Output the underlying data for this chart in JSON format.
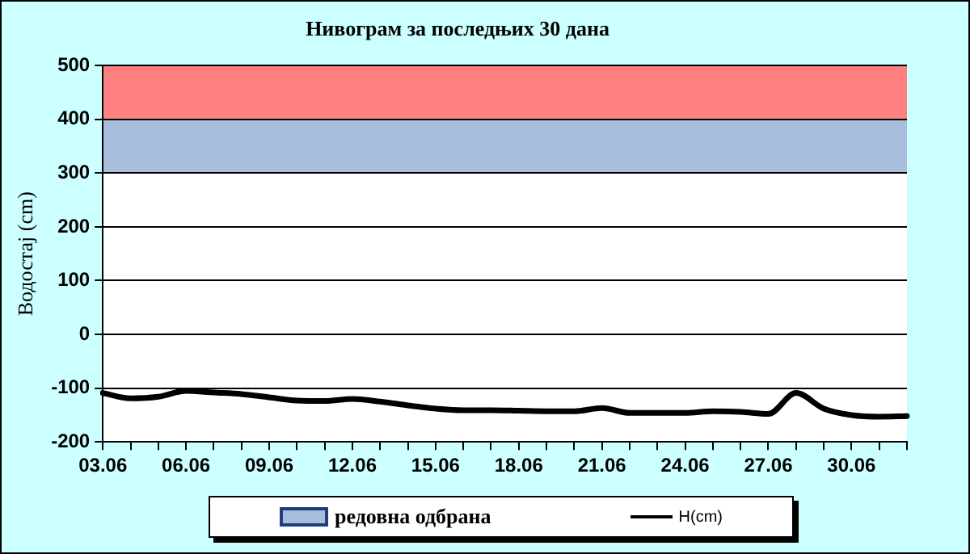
{
  "chart_data": {
    "type": "line",
    "title": "Нивограм за последњих 30 дана",
    "ylabel": "Водостај (cm)",
    "categories": [
      "03.06",
      null,
      null,
      "06.06",
      null,
      null,
      "09.06",
      null,
      null,
      "12.06",
      null,
      null,
      "15.06",
      null,
      null,
      "18.06",
      null,
      null,
      "21.06",
      null,
      null,
      "24.06",
      null,
      null,
      "27.06",
      null,
      null,
      "30.06",
      null,
      null
    ],
    "series": [
      {
        "name": "H(cm)",
        "color": "#000000",
        "values": [
          -109,
          -119,
          -116,
          -105,
          -108,
          -111,
          -117,
          -123,
          -124,
          -120,
          -125,
          -132,
          -138,
          -141,
          -141,
          -142,
          -143,
          -143,
          -137,
          -146,
          -146,
          -146,
          -143,
          -144,
          -148,
          -109,
          -138,
          -150,
          -153,
          -152
        ]
      }
    ],
    "ylim": [
      -200,
      500
    ],
    "yticks": [
      -200,
      -100,
      0,
      100,
      200,
      300,
      400,
      500
    ],
    "bands": [
      {
        "axis": "y",
        "from": 400,
        "to": 500,
        "color": "#ff8080"
      },
      {
        "axis": "y",
        "from": 300,
        "to": 400,
        "label": "редовна одбрана",
        "color": "#a6bddb"
      }
    ],
    "grid": "y",
    "legend": "bottom",
    "marker": "none",
    "line_style": "solid"
  }
}
